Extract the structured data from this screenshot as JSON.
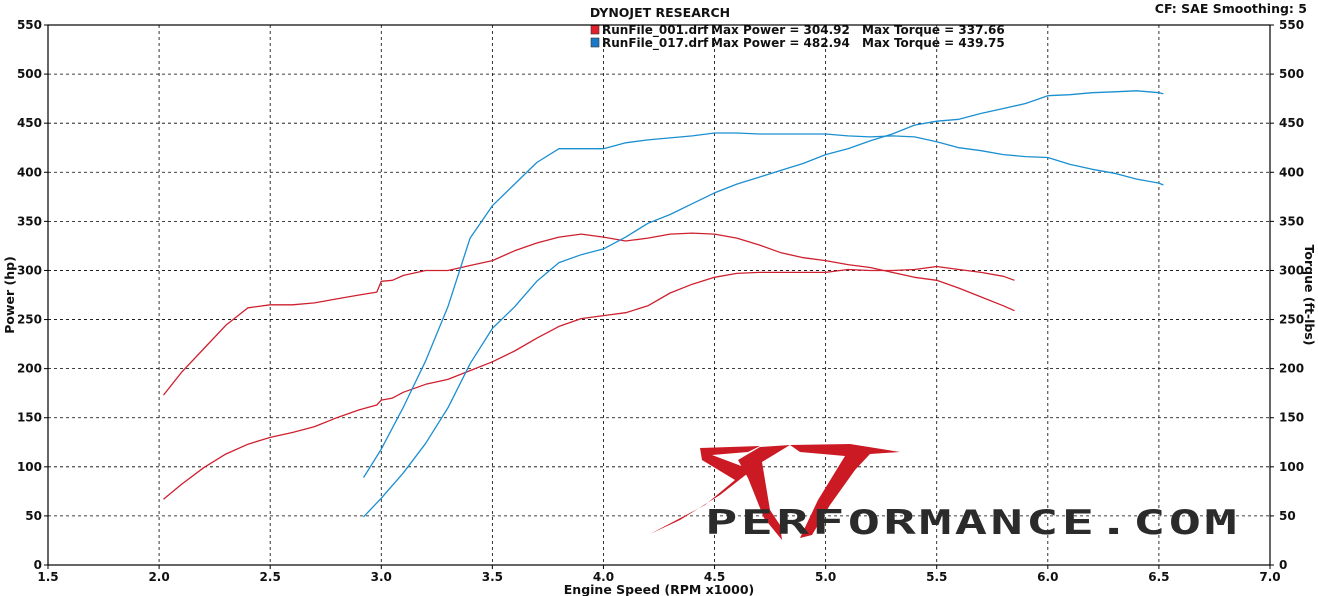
{
  "chart_data": {
    "type": "line",
    "title": "DYNOJET RESEARCH",
    "header_right": "CF: SAE  Smoothing: 5",
    "xlabel": "Engine Speed (RPM x1000)",
    "ylabel_left": "Power (hp)",
    "ylabel_right": "Torque (ft-lbs)",
    "xlim": [
      1.5,
      7.0
    ],
    "ylim": [
      0,
      550
    ],
    "x_ticks": [
      "1.5",
      "2.0",
      "2.5",
      "3.0",
      "3.5",
      "4.0",
      "4.5",
      "5.0",
      "5.5",
      "6.0",
      "6.5",
      "7.0"
    ],
    "y_ticks": [
      "0",
      "50",
      "100",
      "150",
      "200",
      "250",
      "300",
      "350",
      "400",
      "450",
      "500",
      "550"
    ],
    "grid": true,
    "legend_position": "top-center",
    "legend": [
      {
        "color": "#e0202a",
        "file": "RunFile_001.drf",
        "power_text": "Max Power = 304.92",
        "torque_text": "Max Torque = 337.66"
      },
      {
        "color": "#1a78c8",
        "file": "RunFile_017.drf",
        "power_text": "Max Power = 482.94",
        "torque_text": "Max Torque = 439.75"
      }
    ],
    "series": [
      {
        "run": 0,
        "kind": "power",
        "color": "#cf2030",
        "x": [
          2.02,
          2.1,
          2.2,
          2.3,
          2.4,
          2.5,
          2.6,
          2.7,
          2.8,
          2.9,
          2.98,
          3.0,
          3.05,
          3.1,
          3.2,
          3.3,
          3.4,
          3.5,
          3.6,
          3.7,
          3.8,
          3.9,
          4.0,
          4.1,
          4.2,
          4.3,
          4.4,
          4.5,
          4.6,
          4.7,
          4.8,
          4.9,
          5.0,
          5.1,
          5.2,
          5.3,
          5.4,
          5.5,
          5.6,
          5.7,
          5.8,
          5.85
        ],
        "y": [
          67,
          82,
          99,
          113,
          123,
          130,
          135,
          141,
          150,
          158,
          163,
          168,
          170,
          176,
          184,
          189,
          198,
          207,
          218,
          231,
          243,
          251,
          254,
          257,
          264,
          277,
          286,
          293,
          297,
          298,
          298,
          298,
          298,
          301,
          300,
          300,
          301,
          304,
          301,
          298,
          294,
          290
        ]
      },
      {
        "run": 0,
        "kind": "torque",
        "color": "#cf2030",
        "x": [
          2.02,
          2.1,
          2.2,
          2.3,
          2.4,
          2.5,
          2.6,
          2.7,
          2.8,
          2.9,
          2.98,
          3.0,
          3.05,
          3.1,
          3.2,
          3.3,
          3.4,
          3.5,
          3.6,
          3.7,
          3.8,
          3.9,
          4.0,
          4.1,
          4.2,
          4.3,
          4.4,
          4.5,
          4.6,
          4.7,
          4.8,
          4.9,
          5.0,
          5.1,
          5.2,
          5.3,
          5.4,
          5.5,
          5.6,
          5.7,
          5.8,
          5.85
        ],
        "y": [
          173,
          196,
          220,
          244,
          262,
          265,
          265,
          267,
          271,
          275,
          278,
          289,
          290,
          295,
          300,
          300,
          305,
          310,
          320,
          328,
          334,
          337,
          334,
          330,
          333,
          337,
          338,
          337,
          333,
          326,
          318,
          313,
          310,
          306,
          303,
          298,
          293,
          290,
          282,
          273,
          264,
          259
        ]
      },
      {
        "run": 1,
        "kind": "power",
        "color": "#1b8fd0",
        "x": [
          2.92,
          3.0,
          3.1,
          3.2,
          3.3,
          3.4,
          3.5,
          3.6,
          3.7,
          3.8,
          3.9,
          4.0,
          4.1,
          4.2,
          4.3,
          4.4,
          4.5,
          4.6,
          4.7,
          4.8,
          4.9,
          5.0,
          5.1,
          5.2,
          5.3,
          5.4,
          5.5,
          5.6,
          5.7,
          5.8,
          5.9,
          6.0,
          6.1,
          6.2,
          6.3,
          6.4,
          6.5,
          6.52
        ],
        "y": [
          49,
          68,
          94,
          124,
          160,
          205,
          241,
          263,
          289,
          308,
          316,
          322,
          334,
          348,
          357,
          368,
          379,
          388,
          395,
          402,
          409,
          418,
          424,
          432,
          439,
          448,
          452,
          454,
          460,
          465,
          470,
          478,
          479,
          481,
          482,
          483,
          481,
          480
        ]
      },
      {
        "run": 1,
        "kind": "torque",
        "color": "#1b8fd0",
        "x": [
          2.92,
          3.0,
          3.1,
          3.2,
          3.3,
          3.4,
          3.5,
          3.6,
          3.7,
          3.8,
          3.9,
          4.0,
          4.1,
          4.2,
          4.3,
          4.4,
          4.5,
          4.6,
          4.7,
          4.8,
          4.9,
          5.0,
          5.1,
          5.2,
          5.3,
          5.4,
          5.5,
          5.6,
          5.7,
          5.8,
          5.9,
          6.0,
          6.1,
          6.2,
          6.3,
          6.4,
          6.5,
          6.52
        ],
        "y": [
          89,
          118,
          161,
          208,
          263,
          333,
          366,
          388,
          410,
          424,
          424,
          424,
          430,
          433,
          435,
          437,
          440,
          440,
          439,
          439,
          439,
          439,
          437,
          436,
          437,
          436,
          431,
          425,
          422,
          418,
          416,
          415,
          408,
          403,
          399,
          393,
          389,
          387
        ]
      }
    ]
  },
  "watermark": {
    "brand": "SVT",
    "domain": "PERFORMANCE.COM",
    "colors": {
      "red": "#cc1a24",
      "dark": "#2b2b2b"
    }
  }
}
